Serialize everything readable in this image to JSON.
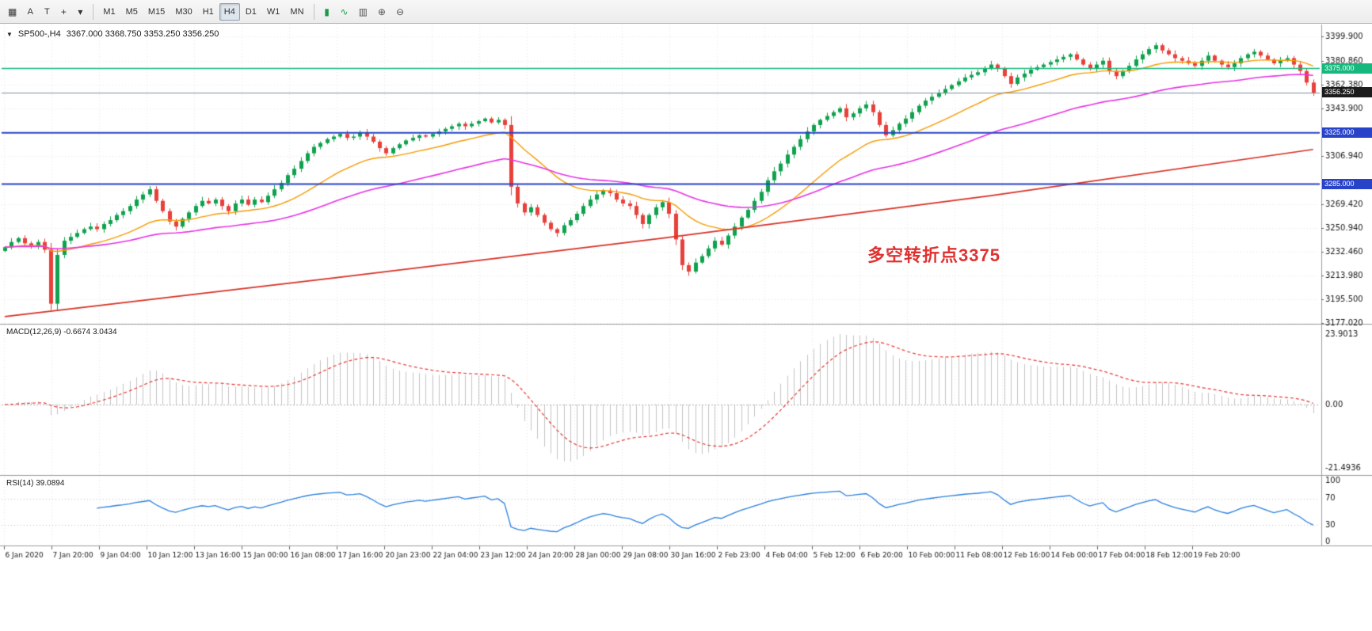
{
  "toolbar": {
    "left_icons": [
      {
        "name": "grid-icon",
        "glyph": "▦"
      },
      {
        "name": "text-tool-icon",
        "glyph": "A"
      },
      {
        "name": "cursor-tool-icon",
        "glyph": "T"
      },
      {
        "name": "crosshair-tool-icon",
        "glyph": "+"
      },
      {
        "name": "drawing-tools-icon",
        "glyph": "▾"
      }
    ],
    "timeframes": [
      {
        "label": "M1",
        "active": false
      },
      {
        "label": "M5",
        "active": false
      },
      {
        "label": "M15",
        "active": false
      },
      {
        "label": "M30",
        "active": false
      },
      {
        "label": "H1",
        "active": false
      },
      {
        "label": "H4",
        "active": true
      },
      {
        "label": "D1",
        "active": false
      },
      {
        "label": "W1",
        "active": false
      },
      {
        "label": "MN",
        "active": false
      }
    ],
    "right_icons": [
      {
        "name": "candlestick-chart-icon",
        "glyph": "▮",
        "color": "#1a9b4a"
      },
      {
        "name": "line-chart-icon",
        "glyph": "∿",
        "color": "#1a9b4a"
      },
      {
        "name": "bar-chart-icon",
        "glyph": "▥",
        "color": "#555555"
      },
      {
        "name": "zoom-in-icon",
        "glyph": "⊕",
        "color": "#555555"
      },
      {
        "name": "zoom-out-icon",
        "glyph": "⊖",
        "color": "#555555"
      }
    ]
  },
  "chart": {
    "symbol_header": {
      "collapse_glyph": "▼",
      "symbol": "SP500-,H4",
      "ohlc": "3367.000 3368.750 3353.250 3356.250"
    }
  },
  "indicators": {
    "macd": {
      "label": "MACD(12,26,9) -0.6674 3.0434"
    },
    "rsi": {
      "label": "RSI(14) 39.0894"
    }
  },
  "annotation": {
    "text": "多空转折点3375",
    "color": "#e03131"
  },
  "chart_data": {
    "type": "candlestick",
    "symbol": "SP500-",
    "timeframe": "H4",
    "ohlc_display": {
      "open": 3367.0,
      "high": 3368.75,
      "low": 3353.25,
      "close": 3356.25
    },
    "price_axis": {
      "min": 3177.02,
      "max": 3399.9
    },
    "first_open": 3233,
    "colors": {
      "up": "#0fa24e",
      "down": "#e8403a"
    },
    "closes": [
      3236,
      3240,
      3243,
      3239,
      3237,
      3240,
      3234,
      3192,
      3230,
      3241,
      3244,
      3247,
      3250,
      3252,
      3250,
      3254,
      3257,
      3261,
      3264,
      3268,
      3273,
      3277,
      3281,
      3272,
      3264,
      3256,
      3252,
      3258,
      3263,
      3268,
      3272,
      3270,
      3273,
      3268,
      3264,
      3270,
      3273,
      3269,
      3273,
      3271,
      3276,
      3281,
      3286,
      3292,
      3297,
      3303,
      3309,
      3314,
      3317,
      3320,
      3322,
      3324,
      3321,
      3322,
      3325,
      3322,
      3318,
      3313,
      3309,
      3313,
      3316,
      3319,
      3321,
      3323,
      3322,
      3324,
      3326,
      3328,
      3330,
      3332,
      3330,
      3332,
      3334,
      3336,
      3333,
      3335,
      3331,
      3283,
      3270,
      3263,
      3267,
      3261,
      3255,
      3250,
      3247,
      3253,
      3257,
      3262,
      3268,
      3273,
      3277,
      3280,
      3278,
      3273,
      3270,
      3268,
      3261,
      3254,
      3261,
      3267,
      3271,
      3262,
      3242,
      3222,
      3217,
      3224,
      3229,
      3235,
      3241,
      3238,
      3245,
      3252,
      3259,
      3265,
      3272,
      3279,
      3288,
      3295,
      3301,
      3308,
      3314,
      3320,
      3326,
      3331,
      3335,
      3338,
      3341,
      3344,
      3337,
      3340,
      3344,
      3347,
      3341,
      3331,
      3323,
      3327,
      3332,
      3336,
      3341,
      3346,
      3350,
      3353,
      3356,
      3359,
      3362,
      3365,
      3368,
      3370,
      3372,
      3375,
      3378,
      3375,
      3369,
      3363,
      3368,
      3371,
      3374,
      3376,
      3378,
      3380,
      3382,
      3384,
      3386,
      3382,
      3378,
      3375,
      3378,
      3381,
      3373,
      3369,
      3373,
      3377,
      3382,
      3386,
      3390,
      3393,
      3389,
      3386,
      3383,
      3381,
      3379,
      3377,
      3381,
      3385,
      3381,
      3378,
      3376,
      3379,
      3383,
      3386,
      3388,
      3385,
      3382,
      3379,
      3381,
      3383,
      3378,
      3373,
      3364,
      3356
    ],
    "levels": [
      {
        "price": 3375.0,
        "label": "3375.000",
        "color": "#17b87e",
        "width": 1.5
      },
      {
        "price": 3325.0,
        "label": "3325.000",
        "color": "#2843c8",
        "width": 2
      },
      {
        "price": 3285.0,
        "label": "3285.000",
        "color": "#2843c8",
        "width": 2
      }
    ],
    "bid": {
      "price": 3356.25,
      "label": "3356.250",
      "line_color": "#7d8fa5",
      "badge_color": "#1c1c1c"
    },
    "price_axis_ticks": [
      {
        "price": 3399.9,
        "label": "3399.900"
      },
      {
        "price": 3380.86,
        "label": "3380.860"
      },
      {
        "price": 3362.38,
        "label": "3362.380"
      },
      {
        "price": 3343.9,
        "label": "3343.900"
      },
      {
        "price": 3306.94,
        "label": "3306.940"
      },
      {
        "price": 3269.42,
        "label": "3269.420"
      },
      {
        "price": 3250.94,
        "label": "3250.940"
      },
      {
        "price": 3232.46,
        "label": "3232.460"
      },
      {
        "price": 3213.98,
        "label": "3213.980"
      },
      {
        "price": 3195.5,
        "label": "3195.500"
      },
      {
        "price": 3177.02,
        "label": "3177.020"
      }
    ],
    "time_axis_labels": [
      "6 Jan 2020",
      "7 Jan 20:00",
      "9 Jan 04:00",
      "10 Jan 12:00",
      "13 Jan 16:00",
      "15 Jan 00:00",
      "16 Jan 08:00",
      "17 Jan 16:00",
      "20 Jan 23:00",
      "22 Jan 04:00",
      "23 Jan 12:00",
      "24 Jan 20:00",
      "28 Jan 00:00",
      "29 Jan 08:00",
      "30 Jan 16:00",
      "2 Feb 23:00",
      "4 Feb 04:00",
      "5 Feb 12:00",
      "6 Feb 20:00",
      "10 Feb 00:00",
      "11 Feb 08:00",
      "12 Feb 16:00",
      "14 Feb 00:00",
      "17 Feb 04:00",
      "18 Feb 12:00",
      "19 Feb 20:00"
    ],
    "moving_averages": {
      "fast_period": 21,
      "mid_period": 55,
      "colors": {
        "fast": "#f59b00",
        "mid": "#e632e6",
        "long": "#d93025"
      },
      "long_points": [
        [
          0,
          3182
        ],
        [
          50,
          3212
        ],
        [
          100,
          3243
        ],
        [
          150,
          3276
        ],
        [
          199,
          3312
        ]
      ]
    },
    "macd": {
      "params": [
        12,
        26,
        9
      ],
      "value": -0.6674,
      "signal_value": 3.0434,
      "ymax": 23.9013,
      "ymin": -21.4936,
      "histogram_color": "#c4c4c4",
      "signal_color": "#e53935",
      "axis": [
        {
          "v": 23.9013,
          "label": "23.9013"
        },
        {
          "v": 0,
          "label": "0.00"
        },
        {
          "v": -21.4936,
          "label": "-21.4936"
        }
      ]
    },
    "rsi": {
      "period": 14,
      "value": 39.0894,
      "color": "#2a7fde",
      "levels": [
        70,
        30
      ],
      "axis": [
        {
          "v": 100,
          "label": "100"
        },
        {
          "v": 70,
          "label": "70"
        },
        {
          "v": 30,
          "label": "30"
        },
        {
          "v": 0,
          "label": "0"
        }
      ]
    }
  }
}
